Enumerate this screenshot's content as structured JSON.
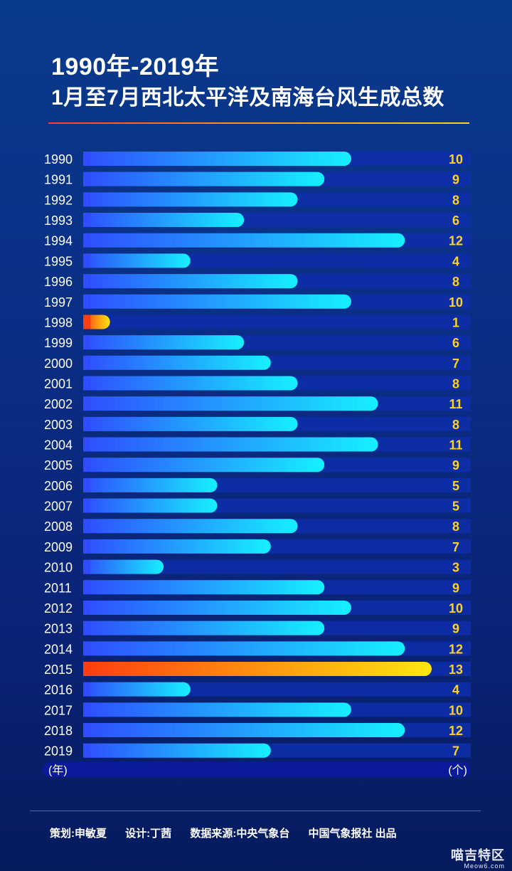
{
  "header": {
    "title": "1990年-2019年",
    "subtitle": "1月至7月西北太平洋及南海台风生成总数"
  },
  "chart_data": {
    "type": "bar",
    "orientation": "horizontal",
    "categories": [
      "1990",
      "1991",
      "1992",
      "1993",
      "1994",
      "1995",
      "1996",
      "1997",
      "1998",
      "1999",
      "2000",
      "2001",
      "2002",
      "2003",
      "2004",
      "2005",
      "2006",
      "2007",
      "2008",
      "2009",
      "2010",
      "2011",
      "2012",
      "2013",
      "2014",
      "2015",
      "2016",
      "2017",
      "2018",
      "2019"
    ],
    "values": [
      10,
      9,
      8,
      6,
      12,
      4,
      8,
      10,
      1,
      6,
      7,
      8,
      11,
      8,
      11,
      9,
      5,
      5,
      8,
      7,
      3,
      9,
      10,
      9,
      12,
      13,
      4,
      10,
      12,
      7
    ],
    "xlabel": "(个)",
    "ylabel": "(年)",
    "xlim": [
      0,
      13
    ],
    "highlight": [
      "1998",
      "2015"
    ],
    "colors": {
      "normal_start": "#2f4dff",
      "normal_end": "#16f0ff",
      "highlight_start": "#ff3d10",
      "highlight_end": "#ffe60f",
      "track": "#0d2da8",
      "value_text": "#ffd21f"
    }
  },
  "footer": {
    "planner": "策划:申敏夏",
    "designer": "设计:丁茜",
    "source": "数据来源:中央气象台",
    "publisher": "中国气象报社 出品"
  },
  "watermark": {
    "main": "喵吉特区",
    "sub": "Meow6.com"
  }
}
